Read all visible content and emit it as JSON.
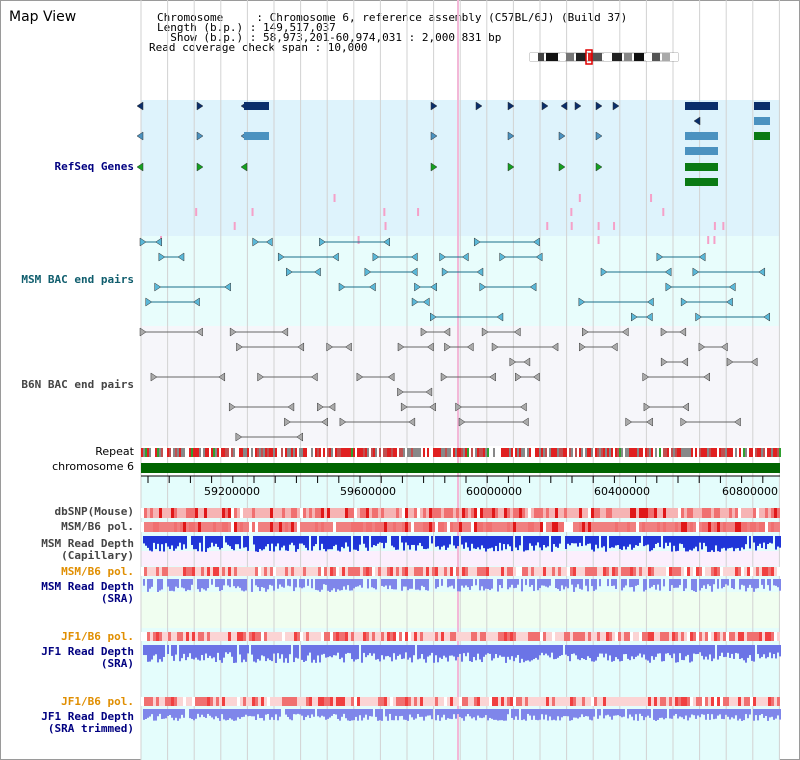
{
  "page": {
    "title": "Map View"
  },
  "info": {
    "chromosome_line": "Chromosome     : Chromosome 6, reference assembly (C57BL/6J) (Build 37)",
    "length_line": "Length (b.p.) : 149,517,037",
    "show_line": "  Show (b.p.) : 58,973,201-60,974,031 : 2,000,831 bp",
    "coverage_line": "Read coverage check span : 10,000"
  },
  "tracks": {
    "refseq": "RefSeq Genes",
    "msm_bac": "MSM BAC end pairs",
    "b6n_bac": "B6N BAC end pairs",
    "repeat": "Repeat",
    "chromosome": "chromosome 6",
    "dbsnp": "dbSNP(Mouse)",
    "msm_b6_pol": "MSM/B6 pol.",
    "msm_depth_cap_1": "MSM Read Depth",
    "msm_depth_cap_2": "(Capillary)",
    "msm_b6_pol_2": "MSM/B6 pol.",
    "msm_depth_sra_1": "MSM Read Depth",
    "msm_depth_sra_2": "(SRA)",
    "jf1_b6_pol": "JF1/B6 pol.",
    "jf1_depth_sra_1": "JF1 Read Depth",
    "jf1_depth_sra_2": "(SRA)",
    "jf1_b6_pol_2": "JF1/B6 pol.",
    "jf1_depth_trim_1": "JF1 Read Depth",
    "jf1_depth_trim_2": "(SRA trimmed)"
  },
  "axis": {
    "ticks": [
      "59200000",
      "59600000",
      "60000000",
      "60400000",
      "60800000"
    ]
  },
  "colors": {
    "refseq_bg": "#def3fc",
    "msm_bg": "#e8fdfc",
    "b6n_bg": "#f6f6fa",
    "depth_bg": "#e4fdfc",
    "pink_bg": "#fbeffd",
    "green_bg": "#f0fef0",
    "chromosome": "#006400",
    "gene_dark": "#0a2e6b",
    "gene_mid": "#4b92c0",
    "gene_green": "#0a7a14",
    "depth_blue": "#2035d8",
    "depth_light": "#7f86ea"
  }
}
